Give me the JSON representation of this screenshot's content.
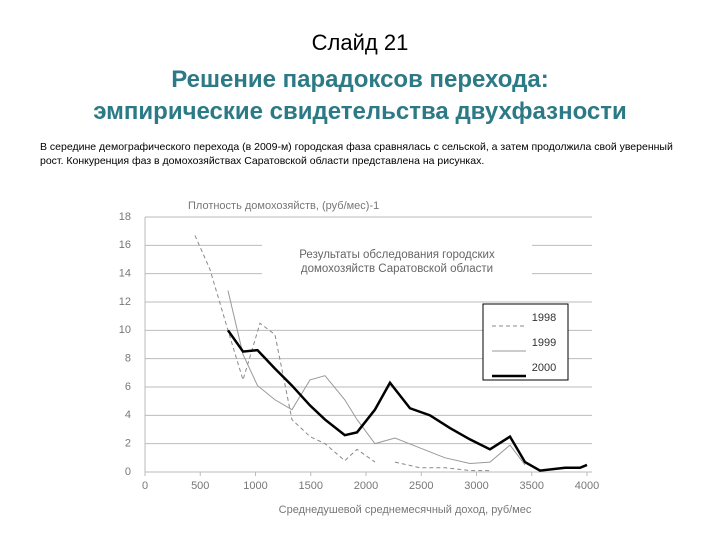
{
  "slide": {
    "label": "Слайд 21",
    "title_lines": [
      "Решение парадоксов перехода:",
      "эмпирические свидетельства двухфазности"
    ],
    "text": "В середине демографического перехода (в 2009-м) городская фаза сравнялась с сельской, а затем продолжила свой уверенный рост. Конкуренция фаз в домохозяйствах Саратовской области представлена на рисунках."
  },
  "chart_data": {
    "type": "line",
    "y_label": "Плотность домохозяйств, (руб/мес)-1",
    "x_label": "Среднедушевой среднемесячный доход, руб/мес",
    "annotation": [
      "Результаты обследования городских",
      "домохозяйств Саратовской области"
    ],
    "xlim": [
      0,
      4000
    ],
    "xticks": [
      0,
      500,
      1000,
      1500,
      2000,
      2500,
      3000,
      3500,
      4000
    ],
    "ylim": [
      0,
      18
    ],
    "yticks": [
      0,
      2,
      4,
      6,
      8,
      10,
      12,
      14,
      16,
      18
    ],
    "grid": true,
    "series": [
      {
        "name": "1998",
        "color": "#8a8a8a",
        "style": "dashed",
        "x": [
          452,
          588,
          751,
          887,
          1041,
          1176,
          1330,
          1493,
          1629,
          1808,
          1919,
          2081,
          null,
          2262,
          2489,
          2715,
          2941,
          3122
        ],
        "values": [
          16.7,
          14.3,
          10,
          6.5,
          10.5,
          9.7,
          3.7,
          2.5,
          2,
          0.8,
          1.6,
          0.7,
          null,
          0.7,
          0.3,
          0.3,
          0.1,
          0.1
        ]
      },
      {
        "name": "1999",
        "color": "#999999",
        "style": "thin",
        "x": [
          751,
          887,
          1018,
          1176,
          1330,
          1493,
          1629,
          1808,
          1919,
          2081,
          2262,
          2489,
          2715,
          2941,
          3122,
          3303,
          3439
        ],
        "values": [
          12.8,
          8.3,
          6.1,
          5.1,
          4.4,
          6.5,
          6.8,
          5.1,
          3.7,
          2,
          2.4,
          1.7,
          1,
          0.6,
          0.7,
          1.9,
          0.5
        ]
      },
      {
        "name": "2000",
        "color": "#000000",
        "style": "thick",
        "x": [
          751,
          887,
          1018,
          1176,
          1330,
          1493,
          1629,
          1808,
          1919,
          2081,
          2217,
          2398,
          2579,
          2760,
          2941,
          3122,
          3303,
          3439,
          3575,
          3801,
          3937,
          4000
        ],
        "values": [
          10,
          8.5,
          8.6,
          7.3,
          6.1,
          4.7,
          3.7,
          2.6,
          2.8,
          4.4,
          6.3,
          4.5,
          4,
          3.1,
          2.3,
          1.6,
          2.5,
          0.7,
          0.1,
          0.3,
          0.3,
          0.5
        ]
      }
    ]
  }
}
